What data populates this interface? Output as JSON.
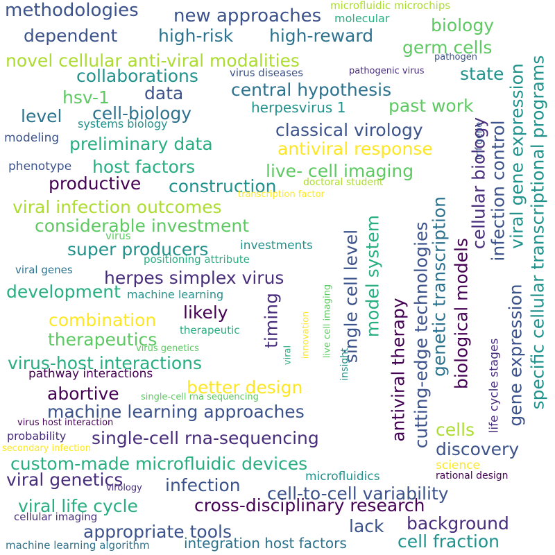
{
  "title": "Word cloud",
  "palette": {
    "dark_purple": "#440154",
    "indigo": "#472d7b",
    "blue": "#3b528b",
    "slate_blue": "#2c728e",
    "teal": "#21918c",
    "sea_green": "#28ae80",
    "green": "#5ec962",
    "lime": "#addc30",
    "yellow": "#fde725"
  },
  "words": [
    "methodologies",
    "new approaches",
    "microfluidic microchips",
    "molecular",
    "dependent",
    "high-risk",
    "high-reward",
    "biology",
    "germ cells",
    "novel cellular anti-viral modalities",
    "pathogen",
    "collaborations",
    "virus diseases",
    "pathogenic virus",
    "state",
    "hsv-1",
    "data",
    "central hypothesis",
    "level",
    "cell-biology",
    "past work",
    "herpesvirus 1",
    "systems biology",
    "classical virology",
    "modeling",
    "preliminary data",
    "antiviral response",
    "phenotype",
    "host factors",
    "live- cell imaging",
    "productive",
    "construction",
    "doctoral student",
    "transcription factor",
    "viral infection outcomes",
    "considerable investment",
    "virus",
    "super producers",
    "investments",
    "positioning attribute",
    "viral genes",
    "herpes simplex virus",
    "development",
    "machine learning",
    "likely",
    "combination",
    "therapeutic",
    "therapeutics",
    "virus genetics",
    "virus-host interactions",
    "pathway interactions",
    "better design",
    "abortive",
    "single-cell rna sequencing",
    "machine learning approaches",
    "virus host interaction",
    "probability",
    "single-cell rna-sequencing",
    "secondary infection",
    "custom-made microfluidic devices",
    "viral genetics",
    "infection",
    "microfluidics",
    "rational design",
    "virology",
    "viral life cycle",
    "cross-disciplinary research",
    "cell-to-cell variability",
    "cellular imaging",
    "appropriate tools",
    "lack",
    "background",
    "integration host factors",
    "machine learning algorithm",
    "cell fraction",
    "cells",
    "discovery",
    "science",
    "specific cellular transcriptional programs",
    "viral gene expression",
    "gene expression",
    "infection control",
    "cellular biology",
    "biological models",
    "genetic transcription",
    "cutting-edge technologies",
    "antiviral therapy",
    "single cell level",
    "model system",
    "timing",
    "live cell imaging",
    "insight",
    "innovation",
    "viral",
    "life cycle stages",
    "tnf gene"
  ]
}
